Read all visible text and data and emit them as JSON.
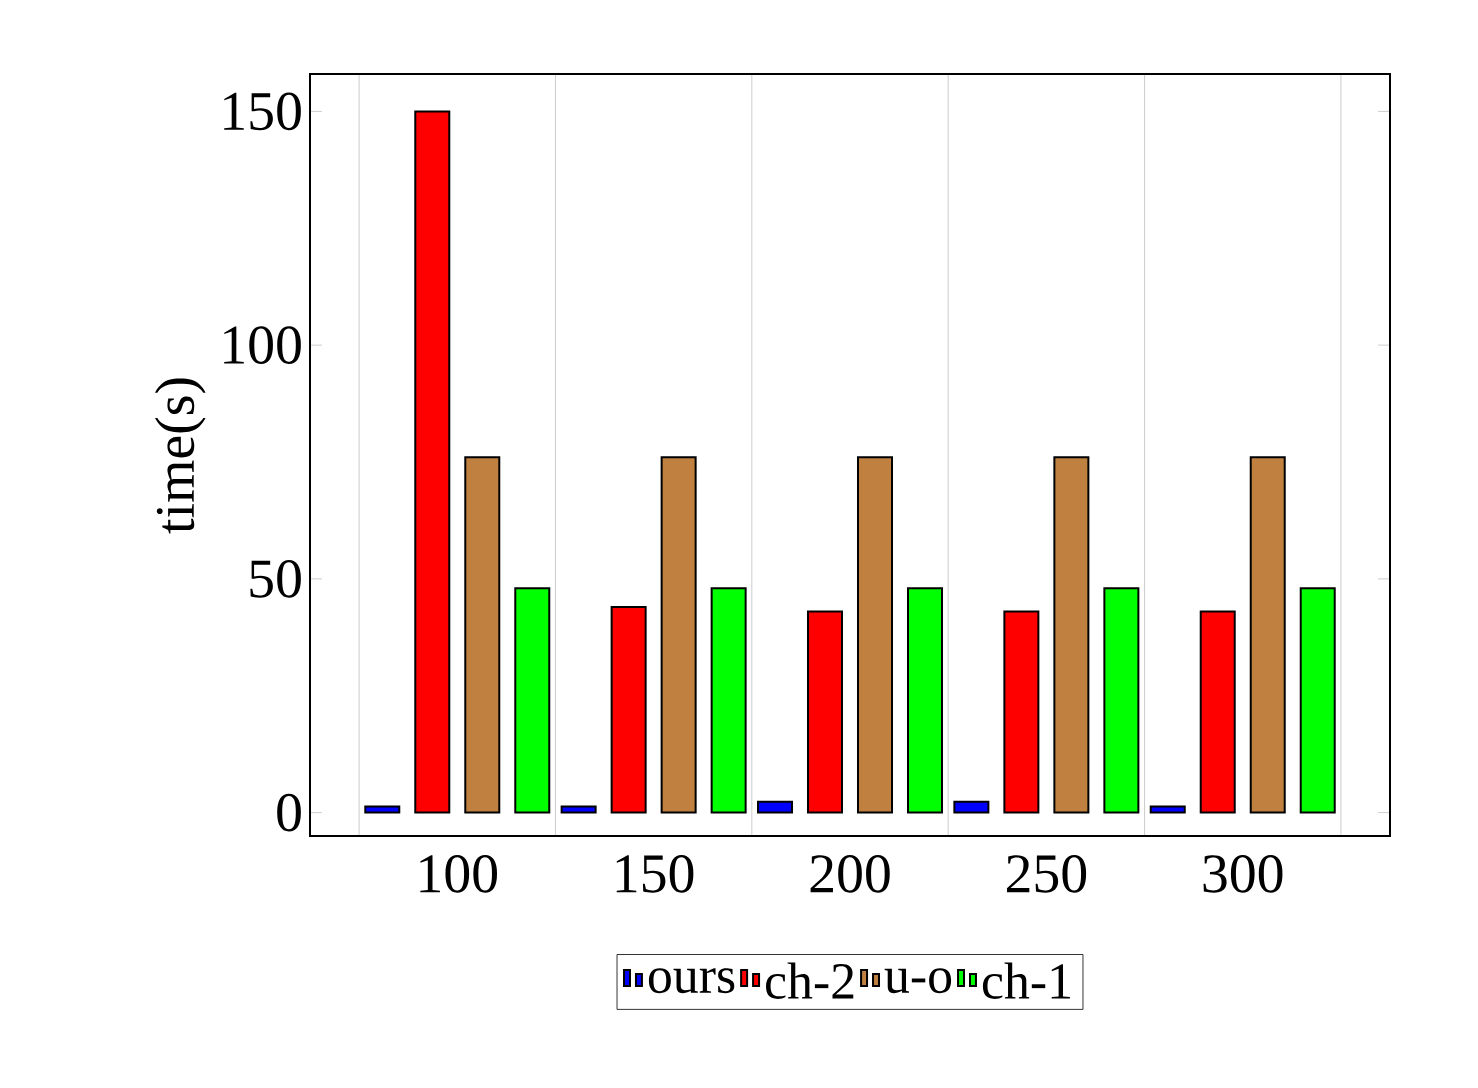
{
  "chart_data": {
    "type": "bar",
    "ylabel": "time(s)",
    "categories": [
      "100",
      "150",
      "200",
      "250",
      "300"
    ],
    "series": [
      {
        "name": "ours",
        "color": "#0000ff",
        "values": [
          1.3,
          1.3,
          2.3,
          2.3,
          1.3
        ]
      },
      {
        "name": "ch-2",
        "color": "#ff0000",
        "values": [
          150,
          44,
          43,
          43,
          43
        ]
      },
      {
        "name": "u-o",
        "color": "#bf8040",
        "values": [
          76,
          76,
          76,
          76,
          76
        ]
      },
      {
        "name": "ch-1",
        "color": "#00ff00",
        "values": [
          48,
          48,
          48,
          48,
          48
        ]
      }
    ],
    "ylim": [
      -5,
      158
    ],
    "yticks": [
      0,
      50,
      100,
      150
    ],
    "grid": "x",
    "legend": "bottom"
  }
}
